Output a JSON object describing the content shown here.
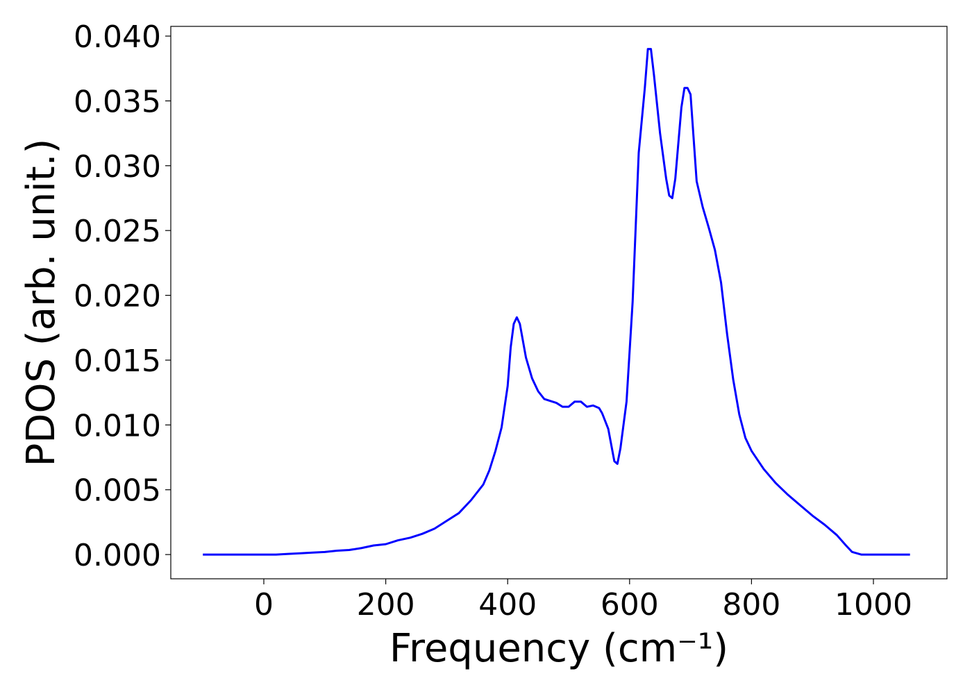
{
  "chart_data": {
    "type": "line",
    "xlabel": "Frequency (cm⁻¹)",
    "ylabel": "PDOS (arb. unit.)",
    "x": [
      -100,
      -80,
      -60,
      -40,
      -20,
      0,
      20,
      40,
      60,
      80,
      100,
      120,
      140,
      160,
      180,
      200,
      220,
      240,
      260,
      280,
      300,
      320,
      340,
      360,
      370,
      380,
      390,
      400,
      405,
      410,
      415,
      420,
      430,
      440,
      450,
      460,
      480,
      490,
      500,
      510,
      520,
      530,
      540,
      550,
      555,
      565,
      575,
      580,
      585,
      595,
      605,
      615,
      625,
      630,
      635,
      640,
      650,
      660,
      665,
      670,
      675,
      685,
      690,
      695,
      700,
      710,
      720,
      730,
      740,
      750,
      760,
      770,
      780,
      790,
      800,
      820,
      840,
      860,
      880,
      900,
      920,
      940,
      955,
      965,
      980,
      1000,
      1060
    ],
    "series": [
      {
        "name": "PDOS",
        "color": "#0000ff",
        "values": [
          0,
          0,
          0,
          0,
          0,
          0,
          0,
          5e-05,
          0.0001,
          0.00015,
          0.0002,
          0.0003,
          0.00035,
          0.0005,
          0.0007,
          0.0008,
          0.0011,
          0.0013,
          0.0016,
          0.002,
          0.0026,
          0.0032,
          0.0042,
          0.0054,
          0.0065,
          0.008,
          0.0098,
          0.013,
          0.016,
          0.0178,
          0.0183,
          0.0178,
          0.0152,
          0.0136,
          0.0126,
          0.012,
          0.0117,
          0.0114,
          0.0114,
          0.0118,
          0.0118,
          0.0114,
          0.0115,
          0.0113,
          0.0109,
          0.0097,
          0.0072,
          0.007,
          0.0082,
          0.0118,
          0.0195,
          0.031,
          0.036,
          0.039,
          0.039,
          0.037,
          0.0325,
          0.029,
          0.0277,
          0.0275,
          0.029,
          0.0345,
          0.036,
          0.036,
          0.0355,
          0.0288,
          0.0268,
          0.0252,
          0.0235,
          0.021,
          0.017,
          0.0135,
          0.0108,
          0.009,
          0.008,
          0.0066,
          0.0055,
          0.0046,
          0.0038,
          0.003,
          0.0023,
          0.0015,
          0.0007,
          0.0002,
          0,
          0,
          0
        ]
      }
    ],
    "xlim": [
      -152.6,
      1120.7
    ],
    "ylim": [
      -0.00187,
      0.04075
    ],
    "xticks": [
      0,
      200,
      400,
      600,
      800,
      1000
    ],
    "yticks": [
      {
        "value": 0,
        "label": "0.000"
      },
      {
        "value": 0.005,
        "label": "0.005"
      },
      {
        "value": 0.01,
        "label": "0.010"
      },
      {
        "value": 0.015,
        "label": "0.015"
      },
      {
        "value": 0.02,
        "label": "0.020"
      },
      {
        "value": 0.025,
        "label": "0.025"
      },
      {
        "value": 0.03,
        "label": "0.030"
      },
      {
        "value": 0.035,
        "label": "0.035"
      },
      {
        "value": 0.04,
        "label": "0.040"
      }
    ],
    "grid": false
  }
}
